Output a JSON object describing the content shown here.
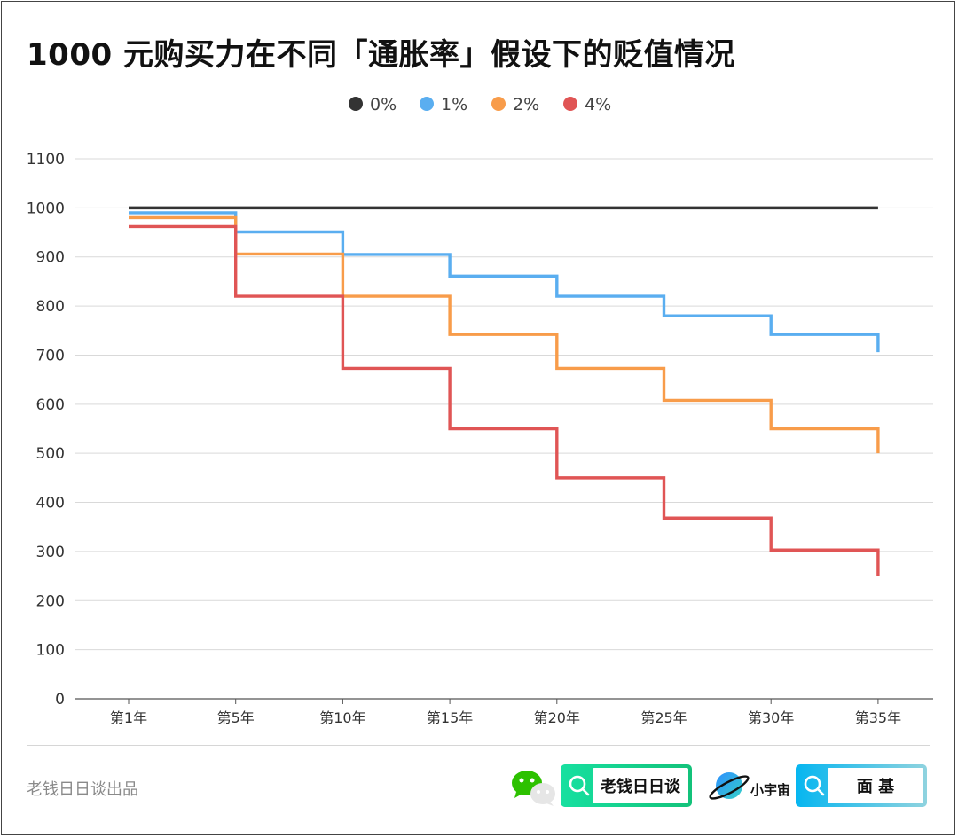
{
  "title": "1000 元购买力在不同「通胀率」假设下的贬值情况",
  "credit": "老钱日日谈出品",
  "footer": {
    "badge1_text": "老钱日日谈",
    "planet_text": "小宇宙",
    "badge2_text": "面 基"
  },
  "chart_data": {
    "type": "line",
    "step": true,
    "categories": [
      "第1年",
      "第5年",
      "第10年",
      "第15年",
      "第20年",
      "第25年",
      "第30年",
      "第35年"
    ],
    "ylim": [
      0,
      1100
    ],
    "yticks": [
      0,
      100,
      200,
      300,
      400,
      500,
      600,
      700,
      800,
      900,
      1000,
      1100
    ],
    "legend_position": "top-center",
    "grid": true,
    "series": [
      {
        "name": "0%",
        "color": "#333333",
        "steps": [
          1000,
          1000,
          1000,
          1000,
          1000,
          1000,
          1000
        ],
        "end": 1000
      },
      {
        "name": "1%",
        "color": "#5aaef0",
        "steps": [
          990,
          951,
          905,
          861,
          820,
          780,
          742
        ],
        "end": 706
      },
      {
        "name": "2%",
        "color": "#f89c4a",
        "steps": [
          980,
          906,
          820,
          742,
          673,
          608,
          550
        ],
        "end": 500
      },
      {
        "name": "4%",
        "color": "#e05555",
        "steps": [
          962,
          820,
          673,
          550,
          450,
          368,
          303
        ],
        "end": 250
      }
    ]
  }
}
